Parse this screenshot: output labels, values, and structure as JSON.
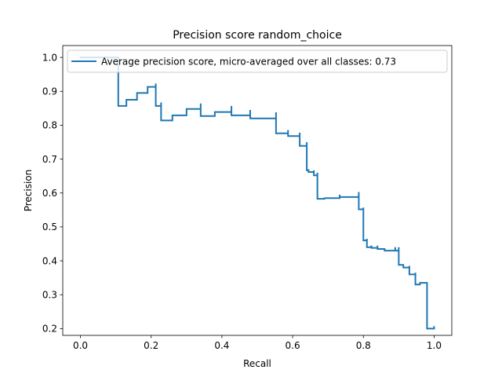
{
  "chart_data": {
    "type": "line",
    "title": "Precision score random_choice",
    "xlabel": "Recall",
    "ylabel": "Precision",
    "xlim": [
      -0.05,
      1.05
    ],
    "ylim": [
      0.18,
      1.035
    ],
    "xticks": [
      "0.0",
      "0.2",
      "0.4",
      "0.6",
      "0.8",
      "1.0"
    ],
    "yticks": [
      "0.2",
      "0.3",
      "0.4",
      "0.5",
      "0.6",
      "0.7",
      "0.8",
      "0.9",
      "1.0"
    ],
    "grid": false,
    "legend_position": "upper-left",
    "series": [
      {
        "name": "Average precision score, micro-averaged over all classes: 0.73",
        "color": "#1f77b4",
        "drawstyle": "steps-post",
        "x": [
          0.0,
          0.107,
          0.107,
          0.107,
          0.13,
          0.16,
          0.19,
          0.213,
          0.213,
          0.228,
          0.228,
          0.26,
          0.3,
          0.34,
          0.34,
          0.38,
          0.427,
          0.427,
          0.48,
          0.48,
          0.553,
          0.553,
          0.587,
          0.587,
          0.62,
          0.62,
          0.64,
          0.64,
          0.645,
          0.645,
          0.66,
          0.66,
          0.67,
          0.67,
          0.69,
          0.69,
          0.733,
          0.733,
          0.787,
          0.787,
          0.8,
          0.8,
          0.81,
          0.81,
          0.823,
          0.823,
          0.84,
          0.84,
          0.86,
          0.86,
          0.89,
          0.89,
          0.9,
          0.9,
          0.913,
          0.913,
          0.93,
          0.93,
          0.947,
          0.947,
          0.96,
          0.96,
          0.98,
          0.98,
          1.0
        ],
        "y": [
          1.0,
          1.0,
          0.99,
          0.857,
          0.875,
          0.895,
          0.913,
          0.923,
          0.857,
          0.867,
          0.814,
          0.829,
          0.848,
          0.864,
          0.827,
          0.839,
          0.857,
          0.829,
          0.845,
          0.82,
          0.838,
          0.776,
          0.786,
          0.768,
          0.778,
          0.739,
          0.75,
          0.667,
          0.67,
          0.662,
          0.667,
          0.652,
          0.66,
          0.583,
          0.586,
          0.585,
          0.595,
          0.588,
          0.603,
          0.552,
          0.557,
          0.46,
          0.465,
          0.44,
          0.445,
          0.438,
          0.445,
          0.435,
          0.43,
          0.43,
          0.44,
          0.43,
          0.44,
          0.388,
          0.39,
          0.38,
          0.385,
          0.36,
          0.365,
          0.33,
          0.335,
          0.335,
          0.335,
          0.2,
          0.205
        ]
      }
    ]
  }
}
